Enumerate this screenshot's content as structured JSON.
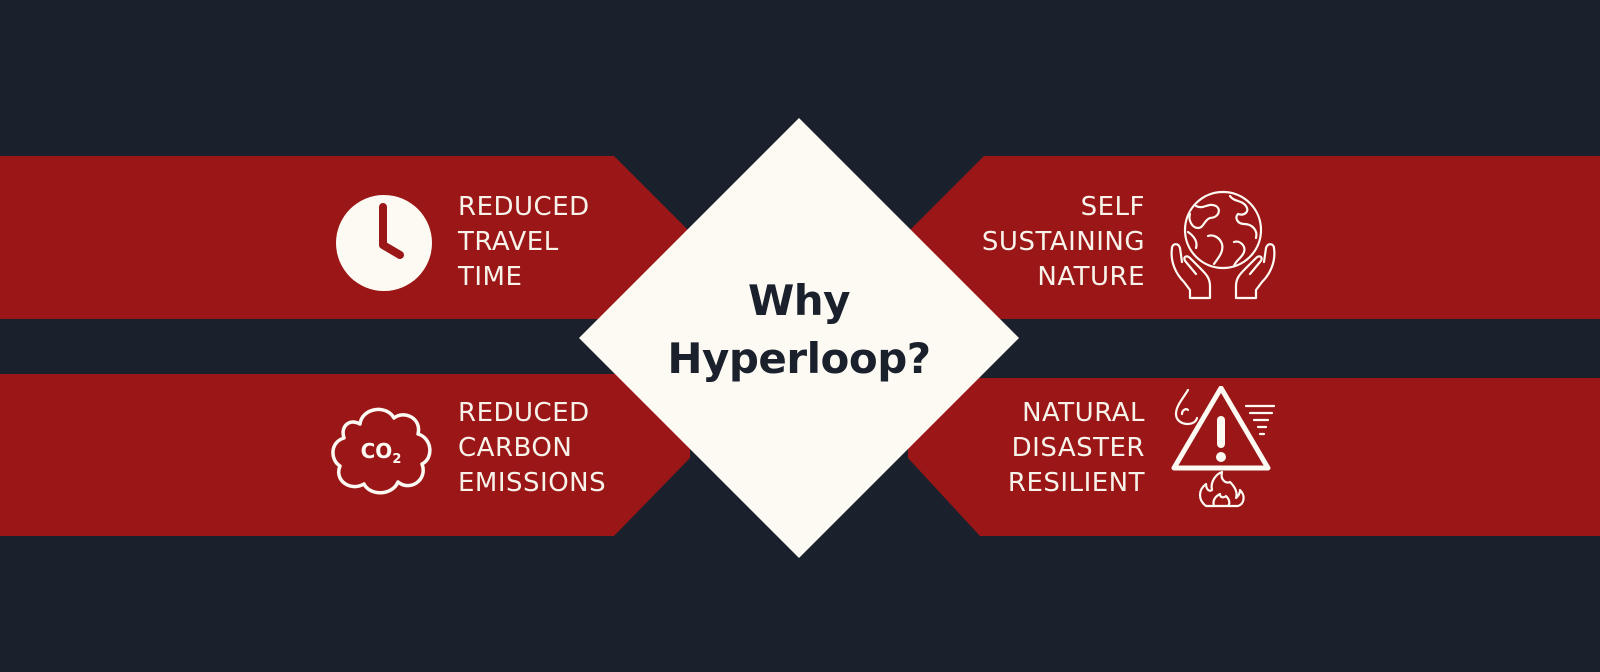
{
  "colors": {
    "background": "#1a202c",
    "band": "#9b1717",
    "diamond": "#fcfaf3",
    "text_light": "#f7f3ea",
    "title_text": "#1a202c"
  },
  "title": {
    "line1": "Why",
    "line2": "Hyperloop?"
  },
  "benefits": [
    {
      "icon": "clock-icon",
      "lines": [
        "REDUCED",
        "TRAVEL",
        "TIME"
      ]
    },
    {
      "icon": "co2-cloud-icon",
      "lines": [
        "REDUCED",
        "CARBON",
        "EMISSIONS"
      ]
    },
    {
      "icon": "earth-in-hands-icon",
      "lines": [
        "SELF",
        "SUSTAINING",
        "NATURE"
      ]
    },
    {
      "icon": "natural-disaster-warning-icon",
      "lines": [
        "NATURAL",
        "DISASTER",
        "RESILIENT"
      ]
    }
  ],
  "co2_label": {
    "main": "CO",
    "sub": "2"
  }
}
